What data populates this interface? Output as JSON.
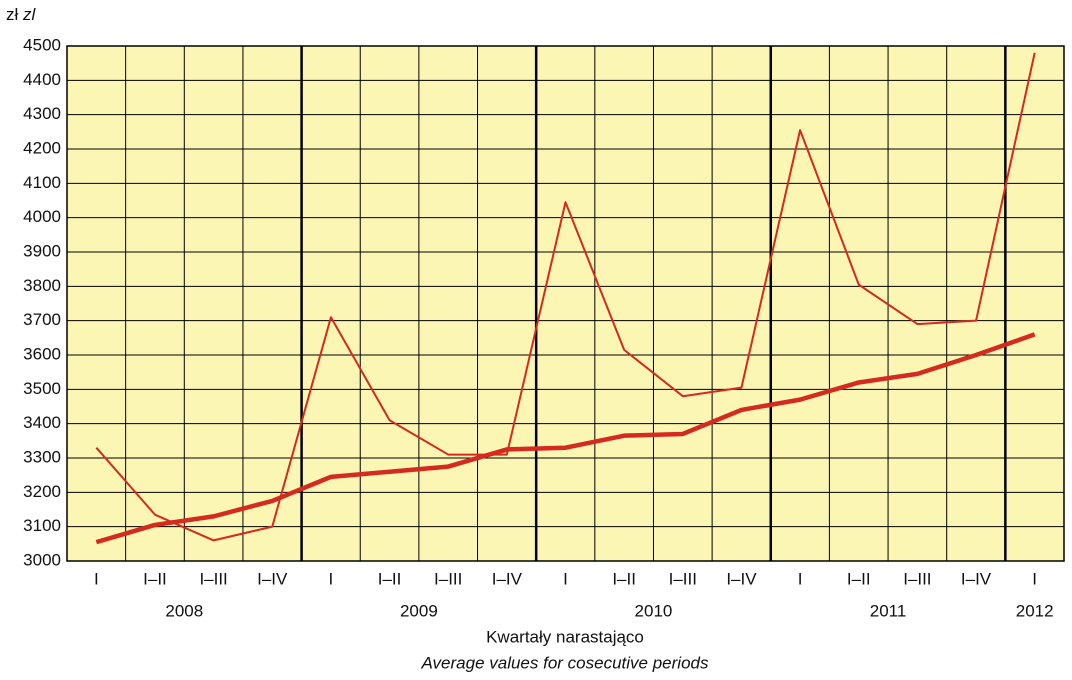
{
  "chart_data": {
    "type": "line",
    "y_unit": "zł",
    "y_unit_en": "zl",
    "x_label": "Kwartały narastająco",
    "x_label_en": "Average values for cosecutive periods",
    "categories": [
      "I",
      "I–II",
      "I–III",
      "I–IV",
      "I",
      "I–II",
      "I–III",
      "I–IV",
      "I",
      "I–II",
      "I–III",
      "I–IV",
      "I",
      "I–II",
      "I–III",
      "I–IV",
      "I"
    ],
    "years": [
      "2008",
      null,
      null,
      null,
      "2009",
      null,
      null,
      null,
      "2010",
      null,
      null,
      null,
      "2011",
      null,
      null,
      null,
      "2012"
    ],
    "series": [
      {
        "color": "#d42a1f",
        "values": [
          3330,
          3135,
          3060,
          3100,
          3710,
          3410,
          3310,
          3310,
          4045,
          3615,
          3480,
          3505,
          4255,
          3805,
          3690,
          3700,
          4480
        ]
      },
      {
        "color": "#d42a1f",
        "values": [
          3055,
          3105,
          3130,
          3175,
          3245,
          3260,
          3275,
          3325,
          3330,
          3365,
          3370,
          3440,
          3470,
          3520,
          3545,
          3600,
          3660
        ]
      }
    ],
    "ylim": [
      3000,
      4500
    ],
    "yticks": [
      3000,
      3100,
      3200,
      3300,
      3400,
      3500,
      3600,
      3700,
      3800,
      3900,
      4000,
      4100,
      4200,
      4300,
      4400,
      4500
    ],
    "grid": true
  }
}
